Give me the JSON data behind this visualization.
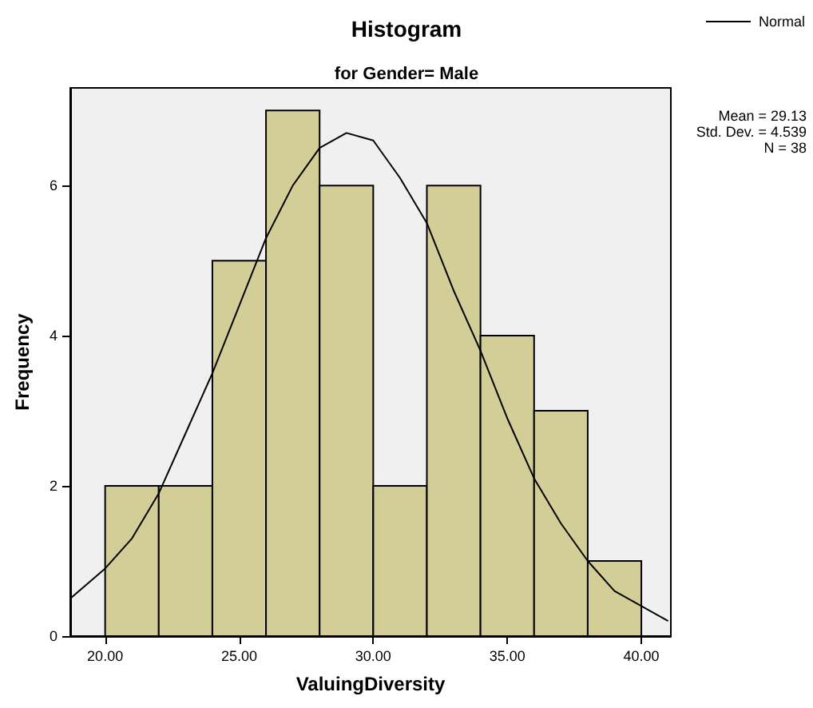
{
  "chart_data": {
    "type": "histogram",
    "title": "Histogram",
    "subtitle": "for Gender= Male",
    "xlabel": "ValuingDiversity",
    "ylabel": "Frequency",
    "bins": [
      20,
      22,
      24,
      26,
      28,
      30,
      32,
      34,
      36,
      38,
      40
    ],
    "values": [
      2,
      2,
      5,
      7,
      6,
      2,
      6,
      4,
      3,
      1
    ],
    "color": "#d3ce97",
    "series": [
      {
        "name": "Normal",
        "type": "line",
        "color": "#000000",
        "x": [
          18.7,
          20,
          21,
          22,
          23,
          24,
          25,
          26,
          27,
          28,
          29,
          30,
          31,
          32,
          33,
          34,
          35,
          36,
          37,
          38,
          39,
          40,
          41
        ],
        "values": [
          0.5,
          0.9,
          1.3,
          1.9,
          2.7,
          3.5,
          4.4,
          5.3,
          6.0,
          6.5,
          6.7,
          6.6,
          6.1,
          5.5,
          4.6,
          3.8,
          2.9,
          2.1,
          1.5,
          1.0,
          0.6,
          0.4,
          0.2
        ]
      }
    ],
    "xlim": [
      18.7,
      41.1
    ],
    "xticks": [
      {
        "value": 20,
        "label": "20.00"
      },
      {
        "value": 25,
        "label": "25.00"
      },
      {
        "value": 30,
        "label": "30.00"
      },
      {
        "value": 35,
        "label": "35.00"
      },
      {
        "value": 40,
        "label": "40.00"
      }
    ],
    "ylim": [
      0,
      7.3
    ],
    "yticks": [
      0,
      2,
      4,
      6
    ],
    "grid": false,
    "legend": "top right",
    "marker": "none",
    "annotations": [
      "Mean = 29.13",
      "Std. Dev. = 4.539",
      "N = 38"
    ]
  }
}
